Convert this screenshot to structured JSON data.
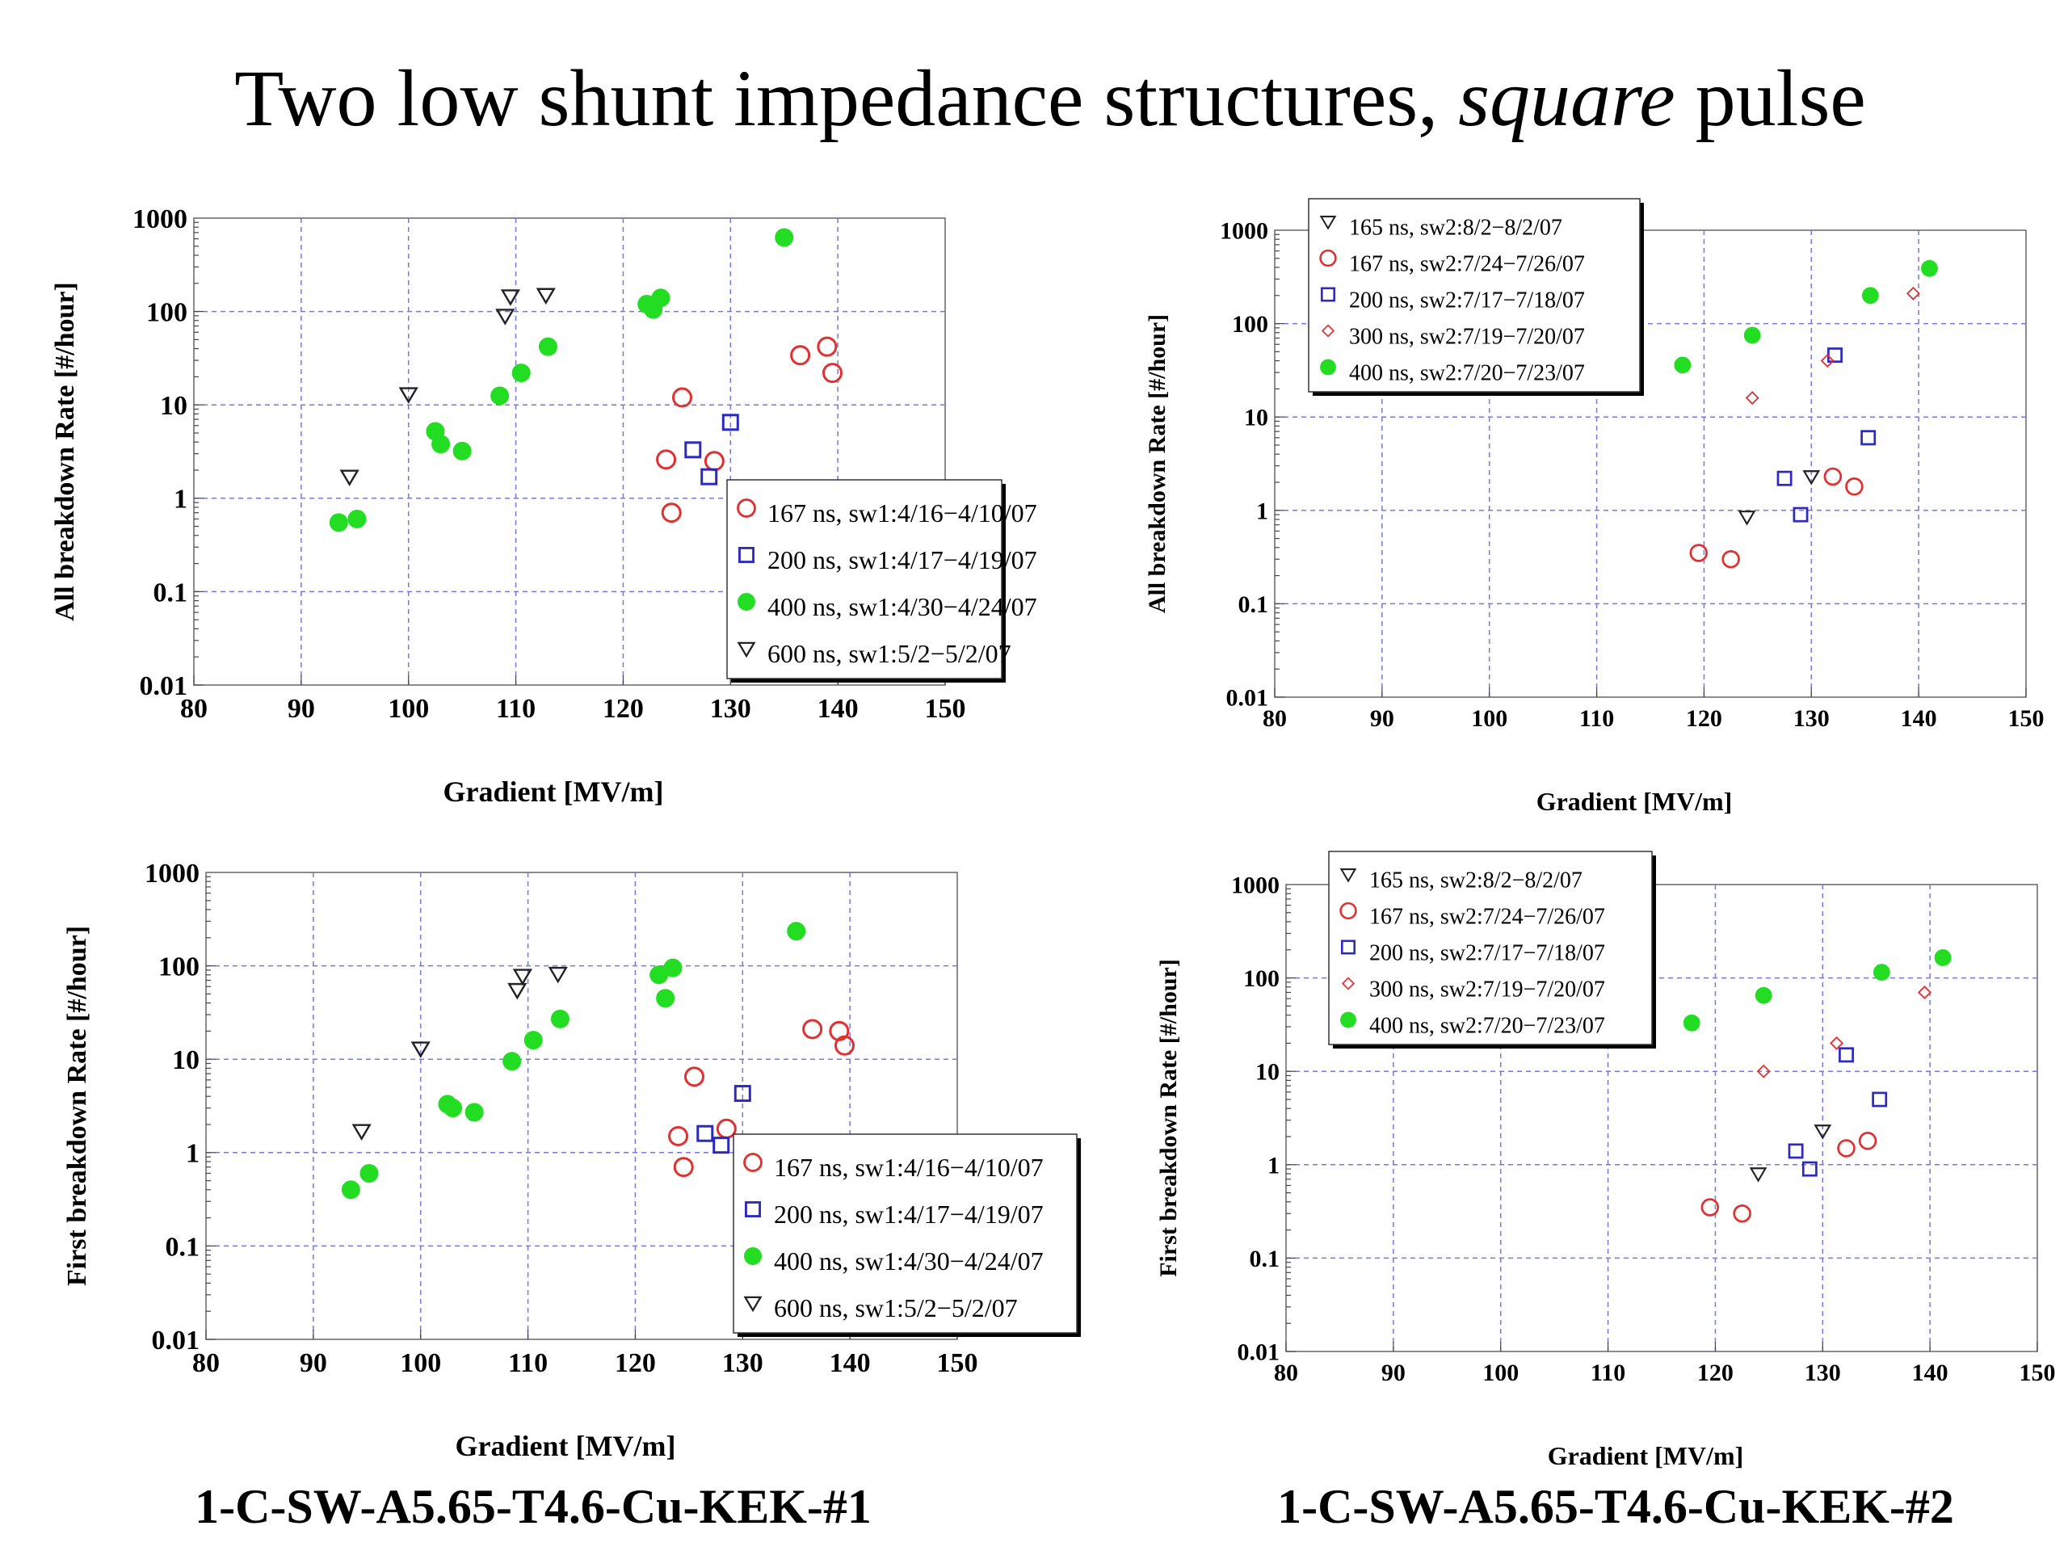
{
  "page": {
    "title_main": "Two low shunt impedance structures, ",
    "title_italic": "square",
    "title_end": " pulse",
    "caption_left": "1-C-SW-A5.65-T4.6-Cu-KEK-#1",
    "caption_right": "1-C-SW-A5.65-T4.6-Cu-KEK-#2"
  },
  "chart_data": [
    {
      "type": "scatter",
      "xlabel": "Gradient [MV/m]",
      "ylabel": "All breakdown Rate [#/hour]",
      "xlim": [
        80,
        150
      ],
      "ylim": [
        0.01,
        1000
      ],
      "yscale": "log",
      "x_ticks": [
        "80",
        "90",
        "100",
        "110",
        "120",
        "130",
        "140",
        "150"
      ],
      "y_ticks": [
        "0.01",
        "0.1",
        "1",
        "10",
        "100",
        "1000"
      ],
      "grid": true,
      "legend_position": "bottom-right",
      "series": [
        {
          "name": "167 ns, sw1:4/16−4/10/07",
          "marker": "circle-open",
          "color": "#e03030",
          "points": [
            [
              124,
              2.6
            ],
            [
              124.5,
              0.7
            ],
            [
              125.5,
              12
            ],
            [
              128.5,
              2.5
            ],
            [
              136.5,
              34
            ],
            [
              139,
              42
            ],
            [
              139.5,
              22
            ]
          ]
        },
        {
          "name": "200 ns, sw1:4/17−4/19/07",
          "marker": "square-open",
          "color": "#2a2ac0",
          "points": [
            [
              126.5,
              3.3
            ],
            [
              128,
              1.7
            ],
            [
              130,
              6.5
            ]
          ]
        },
        {
          "name": "400 ns, sw1:4/30−4/24/07",
          "marker": "circle-filled",
          "color": "#22dd22",
          "points": [
            [
              93.5,
              0.55
            ],
            [
              95.2,
              0.6
            ],
            [
              102.5,
              5.2
            ],
            [
              103,
              3.8
            ],
            [
              105,
              3.2
            ],
            [
              108.5,
              12.5
            ],
            [
              110.5,
              22
            ],
            [
              113,
              42
            ],
            [
              122.2,
              120
            ],
            [
              122.8,
              105
            ],
            [
              123.5,
              140
            ],
            [
              135,
              620
            ]
          ]
        },
        {
          "name": "600 ns, sw1:5/2−5/2/07",
          "marker": "triangle-down-open",
          "color": "#222222",
          "points": [
            [
              94.5,
              1.7
            ],
            [
              100,
              13
            ],
            [
              109,
              90
            ],
            [
              109.5,
              145
            ],
            [
              112.8,
              150
            ]
          ]
        }
      ]
    },
    {
      "type": "scatter",
      "xlabel": "Gradient [MV/m]",
      "ylabel": "All breakdown Rate [#/hour]",
      "xlim": [
        80,
        150
      ],
      "ylim": [
        0.01,
        1000
      ],
      "yscale": "log",
      "x_ticks": [
        "80",
        "90",
        "100",
        "110",
        "120",
        "130",
        "140",
        "150"
      ],
      "y_ticks": [
        "0.01",
        "0.1",
        "1",
        "10",
        "100",
        "1000"
      ],
      "grid": true,
      "legend_position": "top-left",
      "series": [
        {
          "name": "165 ns, sw2:8/2−8/2/07",
          "marker": "triangle-down-open",
          "color": "#222222",
          "points": [
            [
              124,
              0.85
            ],
            [
              130,
              2.3
            ]
          ]
        },
        {
          "name": "167 ns, sw2:7/24−7/26/07",
          "marker": "circle-open",
          "color": "#e03030",
          "points": [
            [
              119.5,
              0.35
            ],
            [
              122.5,
              0.3
            ],
            [
              132,
              2.3
            ],
            [
              134,
              1.8
            ]
          ]
        },
        {
          "name": "200 ns, sw2:7/17−7/18/07",
          "marker": "square-open",
          "color": "#2a2ac0",
          "points": [
            [
              127.5,
              2.2
            ],
            [
              129,
              0.9
            ],
            [
              132.2,
              46
            ],
            [
              135.3,
              6
            ]
          ]
        },
        {
          "name": "300 ns, sw2:7/19−7/20/07",
          "marker": "diamond-open",
          "color": "#e03030",
          "points": [
            [
              124.5,
              16
            ],
            [
              131.5,
              40
            ],
            [
              139.5,
              210
            ]
          ]
        },
        {
          "name": "400 ns, sw2:7/20−7/23/07",
          "marker": "circle-filled",
          "color": "#22dd22",
          "points": [
            [
              118,
              36
            ],
            [
              124.5,
              75
            ],
            [
              135.5,
              200
            ],
            [
              141,
              390
            ]
          ]
        }
      ]
    },
    {
      "type": "scatter",
      "xlabel": "Gradient [MV/m]",
      "ylabel": "First breakdown Rate [#/hour]",
      "xlim": [
        80,
        150
      ],
      "ylim": [
        0.01,
        1000
      ],
      "yscale": "log",
      "x_ticks": [
        "80",
        "90",
        "100",
        "110",
        "120",
        "130",
        "140",
        "150"
      ],
      "y_ticks": [
        "0.01",
        "0.1",
        "1",
        "10",
        "100",
        "1000"
      ],
      "grid": true,
      "legend_position": "bottom-right",
      "series": [
        {
          "name": "167 ns, sw1:4/16−4/10/07",
          "marker": "circle-open",
          "color": "#e03030",
          "points": [
            [
              124,
              1.5
            ],
            [
              124.5,
              0.7
            ],
            [
              125.5,
              6.5
            ],
            [
              128.5,
              1.8
            ],
            [
              136.5,
              21
            ],
            [
              139,
              20
            ],
            [
              139.5,
              14
            ]
          ]
        },
        {
          "name": "200 ns, sw1:4/17−4/19/07",
          "marker": "square-open",
          "color": "#2a2ac0",
          "points": [
            [
              126.5,
              1.6
            ],
            [
              128,
              1.2
            ],
            [
              130,
              4.3
            ]
          ]
        },
        {
          "name": "400 ns, sw1:4/30−4/24/07",
          "marker": "circle-filled",
          "color": "#22dd22",
          "points": [
            [
              93.5,
              0.4
            ],
            [
              95.2,
              0.6
            ],
            [
              102.5,
              3.3
            ],
            [
              103,
              3
            ],
            [
              105,
              2.7
            ],
            [
              108.5,
              9.5
            ],
            [
              110.5,
              16
            ],
            [
              113,
              27
            ],
            [
              122.2,
              80
            ],
            [
              122.8,
              45
            ],
            [
              123.5,
              95
            ],
            [
              135,
              235
            ]
          ]
        },
        {
          "name": "600 ns, sw1:5/2−5/2/07",
          "marker": "triangle-down-open",
          "color": "#222222",
          "points": [
            [
              94.5,
              1.7
            ],
            [
              100,
              13
            ],
            [
              109,
              55
            ],
            [
              109.5,
              78
            ],
            [
              112.8,
              82
            ]
          ]
        }
      ]
    },
    {
      "type": "scatter",
      "xlabel": "Gradient [MV/m]",
      "ylabel": "First breakdown Rate [#/hour]",
      "xlim": [
        80,
        150
      ],
      "ylim": [
        0.01,
        1000
      ],
      "yscale": "log",
      "x_ticks": [
        "80",
        "90",
        "100",
        "110",
        "120",
        "130",
        "140",
        "150"
      ],
      "y_ticks": [
        "0.01",
        "0.1",
        "1",
        "10",
        "100",
        "1000"
      ],
      "grid": true,
      "legend_position": "top-left",
      "series": [
        {
          "name": "165 ns, sw2:8/2−8/2/07",
          "marker": "triangle-down-open",
          "color": "#222222",
          "points": [
            [
              124,
              0.8
            ],
            [
              130,
              2.3
            ]
          ]
        },
        {
          "name": "167 ns, sw2:7/24−7/26/07",
          "marker": "circle-open",
          "color": "#e03030",
          "points": [
            [
              119.5,
              0.35
            ],
            [
              122.5,
              0.3
            ],
            [
              132.2,
              1.5
            ],
            [
              134.2,
              1.8
            ]
          ]
        },
        {
          "name": "200 ns, sw2:7/17−7/18/07",
          "marker": "square-open",
          "color": "#2a2ac0",
          "points": [
            [
              127.5,
              1.4
            ],
            [
              128.8,
              0.9
            ],
            [
              132.2,
              15
            ],
            [
              135.3,
              5
            ]
          ]
        },
        {
          "name": "300 ns, sw2:7/19−7/20/07",
          "marker": "diamond-open",
          "color": "#e03030",
          "points": [
            [
              124.5,
              10
            ],
            [
              131.3,
              20
            ],
            [
              139.5,
              70
            ]
          ]
        },
        {
          "name": "400 ns, sw2:7/20−7/23/07",
          "marker": "circle-filled",
          "color": "#22dd22",
          "points": [
            [
              117.8,
              33
            ],
            [
              124.5,
              65
            ],
            [
              135.5,
              115
            ],
            [
              141.2,
              165
            ]
          ]
        }
      ]
    }
  ]
}
